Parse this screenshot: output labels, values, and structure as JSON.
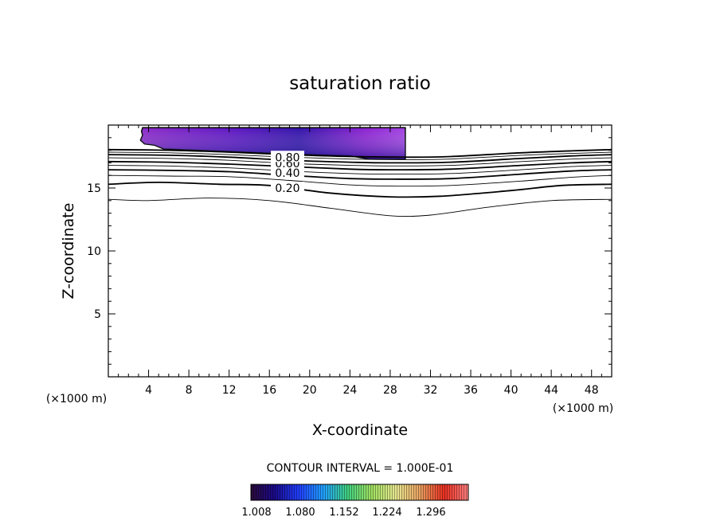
{
  "chart_data": {
    "type": "contour",
    "title": "saturation ratio",
    "xlabel": "X-coordinate",
    "ylabel": "Z-coordinate",
    "x_unit": "(×1000 m)",
    "xlim": [
      0,
      50
    ],
    "ylim": [
      0,
      20
    ],
    "x_ticks": [
      4,
      8,
      12,
      16,
      20,
      24,
      28,
      32,
      36,
      40,
      44,
      48
    ],
    "y_ticks": [
      5,
      10,
      15
    ],
    "contour_interval": "CONTOUR INTERVAL = 1.000E-01",
    "contour_labels": [
      "0.20",
      "0.40",
      "0.60",
      "0.80"
    ],
    "colorbar": {
      "ticks": [
        "1.008",
        "1.080",
        "1.152",
        "1.224",
        "1.296"
      ],
      "colors": [
        "#2a0a3a",
        "#1a0a8c",
        "#2040ff",
        "#20a0ff",
        "#40d080",
        "#a0e060",
        "#e8e890",
        "#e8a060",
        "#e83020",
        "#ff8080"
      ]
    },
    "contours": [
      {
        "level": 0.1,
        "points": [
          [
            0,
            14.1
          ],
          [
            4,
            14.0
          ],
          [
            10,
            14.2
          ],
          [
            16,
            14.0
          ],
          [
            22,
            13.4
          ],
          [
            28,
            12.8
          ],
          [
            32,
            12.85
          ],
          [
            38,
            13.5
          ],
          [
            44,
            14.0
          ],
          [
            50,
            14.1
          ]
        ]
      },
      {
        "level": 0.2,
        "points": [
          [
            0,
            15.3
          ],
          [
            5,
            15.45
          ],
          [
            11,
            15.3
          ],
          [
            16,
            15.2
          ],
          [
            22,
            14.6
          ],
          [
            28,
            14.3
          ],
          [
            33,
            14.35
          ],
          [
            40,
            14.8
          ],
          [
            45,
            15.2
          ],
          [
            50,
            15.3
          ]
        ]
      },
      {
        "level": 0.3,
        "points": [
          [
            0,
            16.0
          ],
          [
            6,
            15.95
          ],
          [
            12,
            15.9
          ],
          [
            18,
            15.6
          ],
          [
            24,
            15.25
          ],
          [
            28,
            15.15
          ],
          [
            34,
            15.2
          ],
          [
            41,
            15.55
          ],
          [
            46,
            15.85
          ],
          [
            50,
            16.0
          ]
        ]
      },
      {
        "level": 0.4,
        "points": [
          [
            0,
            16.45
          ],
          [
            6,
            16.4
          ],
          [
            12,
            16.3
          ],
          [
            18,
            16.0
          ],
          [
            24,
            15.75
          ],
          [
            28,
            15.7
          ],
          [
            34,
            15.75
          ],
          [
            41,
            16.1
          ],
          [
            46,
            16.35
          ],
          [
            50,
            16.45
          ]
        ]
      },
      {
        "level": 0.5,
        "points": [
          [
            0,
            16.8
          ],
          [
            6,
            16.75
          ],
          [
            12,
            16.6
          ],
          [
            18,
            16.35
          ],
          [
            24,
            16.15
          ],
          [
            28,
            16.1
          ],
          [
            34,
            16.15
          ],
          [
            41,
            16.45
          ],
          [
            46,
            16.7
          ],
          [
            50,
            16.8
          ]
        ]
      },
      {
        "level": 0.6,
        "points": [
          [
            0,
            17.1
          ],
          [
            6,
            17.05
          ],
          [
            12,
            16.9
          ],
          [
            18,
            16.7
          ],
          [
            24,
            16.5
          ],
          [
            28,
            16.45
          ],
          [
            34,
            16.5
          ],
          [
            41,
            16.8
          ],
          [
            46,
            17.0
          ],
          [
            50,
            17.1
          ]
        ]
      },
      {
        "level": 0.7,
        "points": [
          [
            0,
            17.4
          ],
          [
            6,
            17.35
          ],
          [
            12,
            17.2
          ],
          [
            18,
            16.95
          ],
          [
            24,
            16.8
          ],
          [
            28,
            16.75
          ],
          [
            34,
            16.8
          ],
          [
            41,
            17.1
          ],
          [
            46,
            17.3
          ],
          [
            50,
            17.4
          ]
        ]
      },
      {
        "level": 0.8,
        "points": [
          [
            0,
            17.65
          ],
          [
            6,
            17.6
          ],
          [
            12,
            17.45
          ],
          [
            18,
            17.2
          ],
          [
            24,
            17.05
          ],
          [
            28,
            17.0
          ],
          [
            34,
            17.05
          ],
          [
            41,
            17.35
          ],
          [
            46,
            17.55
          ],
          [
            50,
            17.65
          ]
        ]
      },
      {
        "level": 0.9,
        "points": [
          [
            0,
            17.85
          ],
          [
            6,
            17.8
          ],
          [
            12,
            17.65
          ],
          [
            18,
            17.45
          ],
          [
            24,
            17.3
          ],
          [
            30,
            17.25
          ],
          [
            34,
            17.3
          ],
          [
            41,
            17.6
          ],
          [
            46,
            17.75
          ],
          [
            50,
            17.85
          ]
        ]
      },
      {
        "level": 1.0,
        "points": [
          [
            0,
            18.05
          ],
          [
            6,
            18.0
          ],
          [
            12,
            17.85
          ],
          [
            18,
            17.65
          ],
          [
            24,
            17.5
          ],
          [
            30,
            17.45
          ],
          [
            34,
            17.5
          ],
          [
            41,
            17.8
          ],
          [
            46,
            17.95
          ],
          [
            50,
            18.05
          ]
        ]
      }
    ],
    "supersaturated_region": {
      "points": [
        [
          3.4,
          19.8
        ],
        [
          3.3,
          19.5
        ],
        [
          3.4,
          19.2
        ],
        [
          3.2,
          18.8
        ],
        [
          3.6,
          18.5
        ],
        [
          4.6,
          18.4
        ],
        [
          5.5,
          18.1
        ],
        [
          12,
          17.9
        ],
        [
          18,
          17.7
        ],
        [
          24,
          17.55
        ],
        [
          26,
          17.3
        ],
        [
          29.5,
          17.3
        ],
        [
          29.5,
          19.8
        ]
      ]
    }
  }
}
